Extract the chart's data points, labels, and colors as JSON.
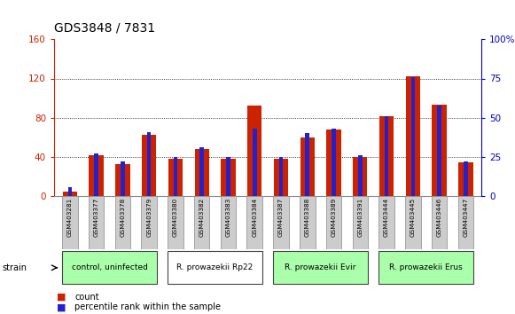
{
  "title": "GDS3848 / 7831",
  "samples": [
    "GSM403281",
    "GSM403377",
    "GSM403378",
    "GSM403379",
    "GSM403380",
    "GSM403382",
    "GSM403383",
    "GSM403384",
    "GSM403387",
    "GSM403388",
    "GSM403389",
    "GSM403391",
    "GSM403444",
    "GSM403445",
    "GSM403446",
    "GSM403447"
  ],
  "count_values": [
    5,
    42,
    33,
    63,
    38,
    48,
    38,
    92,
    38,
    60,
    68,
    40,
    82,
    122,
    93,
    35
  ],
  "percentile_values_pct": [
    6,
    27,
    22,
    41,
    25,
    31,
    25,
    43,
    25,
    40,
    43,
    26,
    51,
    76,
    58,
    22
  ],
  "bar_width": 0.55,
  "count_color": "#cc2200",
  "percentile_color": "#2222cc",
  "left_ylim": [
    0,
    160
  ],
  "right_ylim": [
    0,
    100
  ],
  "left_yticks": [
    0,
    40,
    80,
    120,
    160
  ],
  "right_yticks": [
    0,
    25,
    50,
    75,
    100
  ],
  "right_yticklabels": [
    "0",
    "25",
    "50",
    "75",
    "100%"
  ],
  "grid_values": [
    40,
    80,
    120
  ],
  "plot_bg_color": "#ffffff",
  "strain_groups": [
    {
      "label": "control, uninfected",
      "start": 0,
      "end": 3,
      "color": "#aaffaa"
    },
    {
      "label": "R. prowazekii Rp22",
      "start": 4,
      "end": 7,
      "color": "#ffffff"
    },
    {
      "label": "R. prowazekii Evir",
      "start": 8,
      "end": 11,
      "color": "#aaffaa"
    },
    {
      "label": "R. prowazekii Erus",
      "start": 12,
      "end": 15,
      "color": "#aaffaa"
    }
  ],
  "legend_count_label": "count",
  "legend_pct_label": "percentile rank within the sample",
  "strain_label": "strain",
  "left_tick_color": "#cc2200",
  "right_tick_color": "#0000cc"
}
